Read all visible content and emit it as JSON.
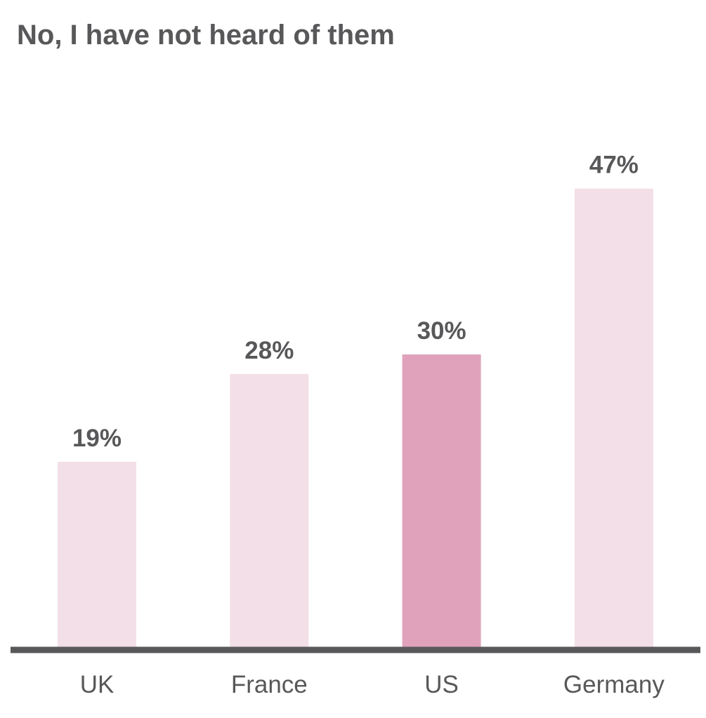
{
  "chart_data": {
    "type": "bar",
    "title": "No, I have not heard of them",
    "categories": [
      "UK",
      "France",
      "US",
      "Germany"
    ],
    "values": [
      19,
      28,
      30,
      47
    ],
    "data_labels": [
      "19%",
      "28%",
      "30%",
      "47%"
    ],
    "value_unit": "%",
    "highlight_category": "US",
    "ylim": [
      0,
      55
    ],
    "grid": false,
    "legend": "none",
    "colors": {
      "bar": "#f3dfe7",
      "highlight_bar": "#e0a2bb",
      "axis": "#58585a",
      "text": "#58585a"
    }
  }
}
